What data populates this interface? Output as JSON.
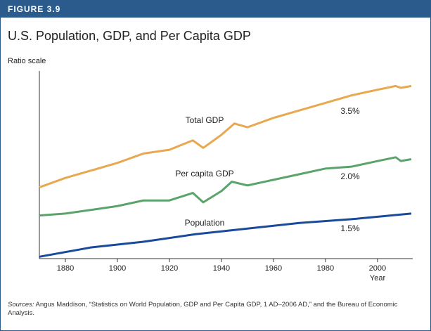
{
  "header": {
    "figure": "FIGURE 3.9"
  },
  "chart_data": {
    "type": "line",
    "title": "U.S. Population, GDP, and Per Capita GDP",
    "y_label": "Ratio scale",
    "x_label": "Year",
    "log_scale": true,
    "xlim": [
      1870,
      2013
    ],
    "xticks": [
      1880,
      1900,
      1920,
      1940,
      1960,
      1980,
      2000
    ],
    "ylim": [
      0,
      100
    ],
    "series": [
      {
        "name": "Total GDP",
        "color": "#e8a850",
        "x": [
          1870,
          1880,
          1890,
          1900,
          1910,
          1920,
          1929,
          1933,
          1940,
          1945,
          1950,
          1960,
          1970,
          1980,
          1990,
          2000,
          2007,
          2009,
          2013
        ],
        "values": [
          38,
          43,
          47,
          51,
          56,
          58,
          63,
          59,
          66,
          72,
          70,
          75,
          79,
          83,
          87,
          90,
          92,
          91,
          92
        ]
      },
      {
        "name": "Per capita GDP",
        "color": "#5aa36a",
        "x": [
          1870,
          1880,
          1890,
          1900,
          1910,
          1920,
          1929,
          1933,
          1940,
          1944,
          1950,
          1960,
          1970,
          1980,
          1990,
          2000,
          2007,
          2009,
          2013
        ],
        "values": [
          23,
          24,
          26,
          28,
          31,
          31,
          35,
          30,
          36,
          41,
          39,
          42,
          45,
          48,
          49,
          52,
          54,
          52,
          53
        ]
      },
      {
        "name": "Population",
        "color": "#1a4b9a",
        "x": [
          1870,
          1890,
          1910,
          1930,
          1950,
          1970,
          1990,
          2013
        ],
        "values": [
          1,
          6,
          9,
          13,
          16,
          19,
          21,
          24
        ]
      }
    ],
    "annotations": [
      "3.5%",
      "2.0%",
      "1.5%"
    ]
  },
  "footnote": {
    "label": "Sources:",
    "text": "Angus Maddison, “Statistics on World Population, GDP and Per Capita GDP, 1 AD–2006 AD,” and the Bureau of Economic Analysis."
  }
}
